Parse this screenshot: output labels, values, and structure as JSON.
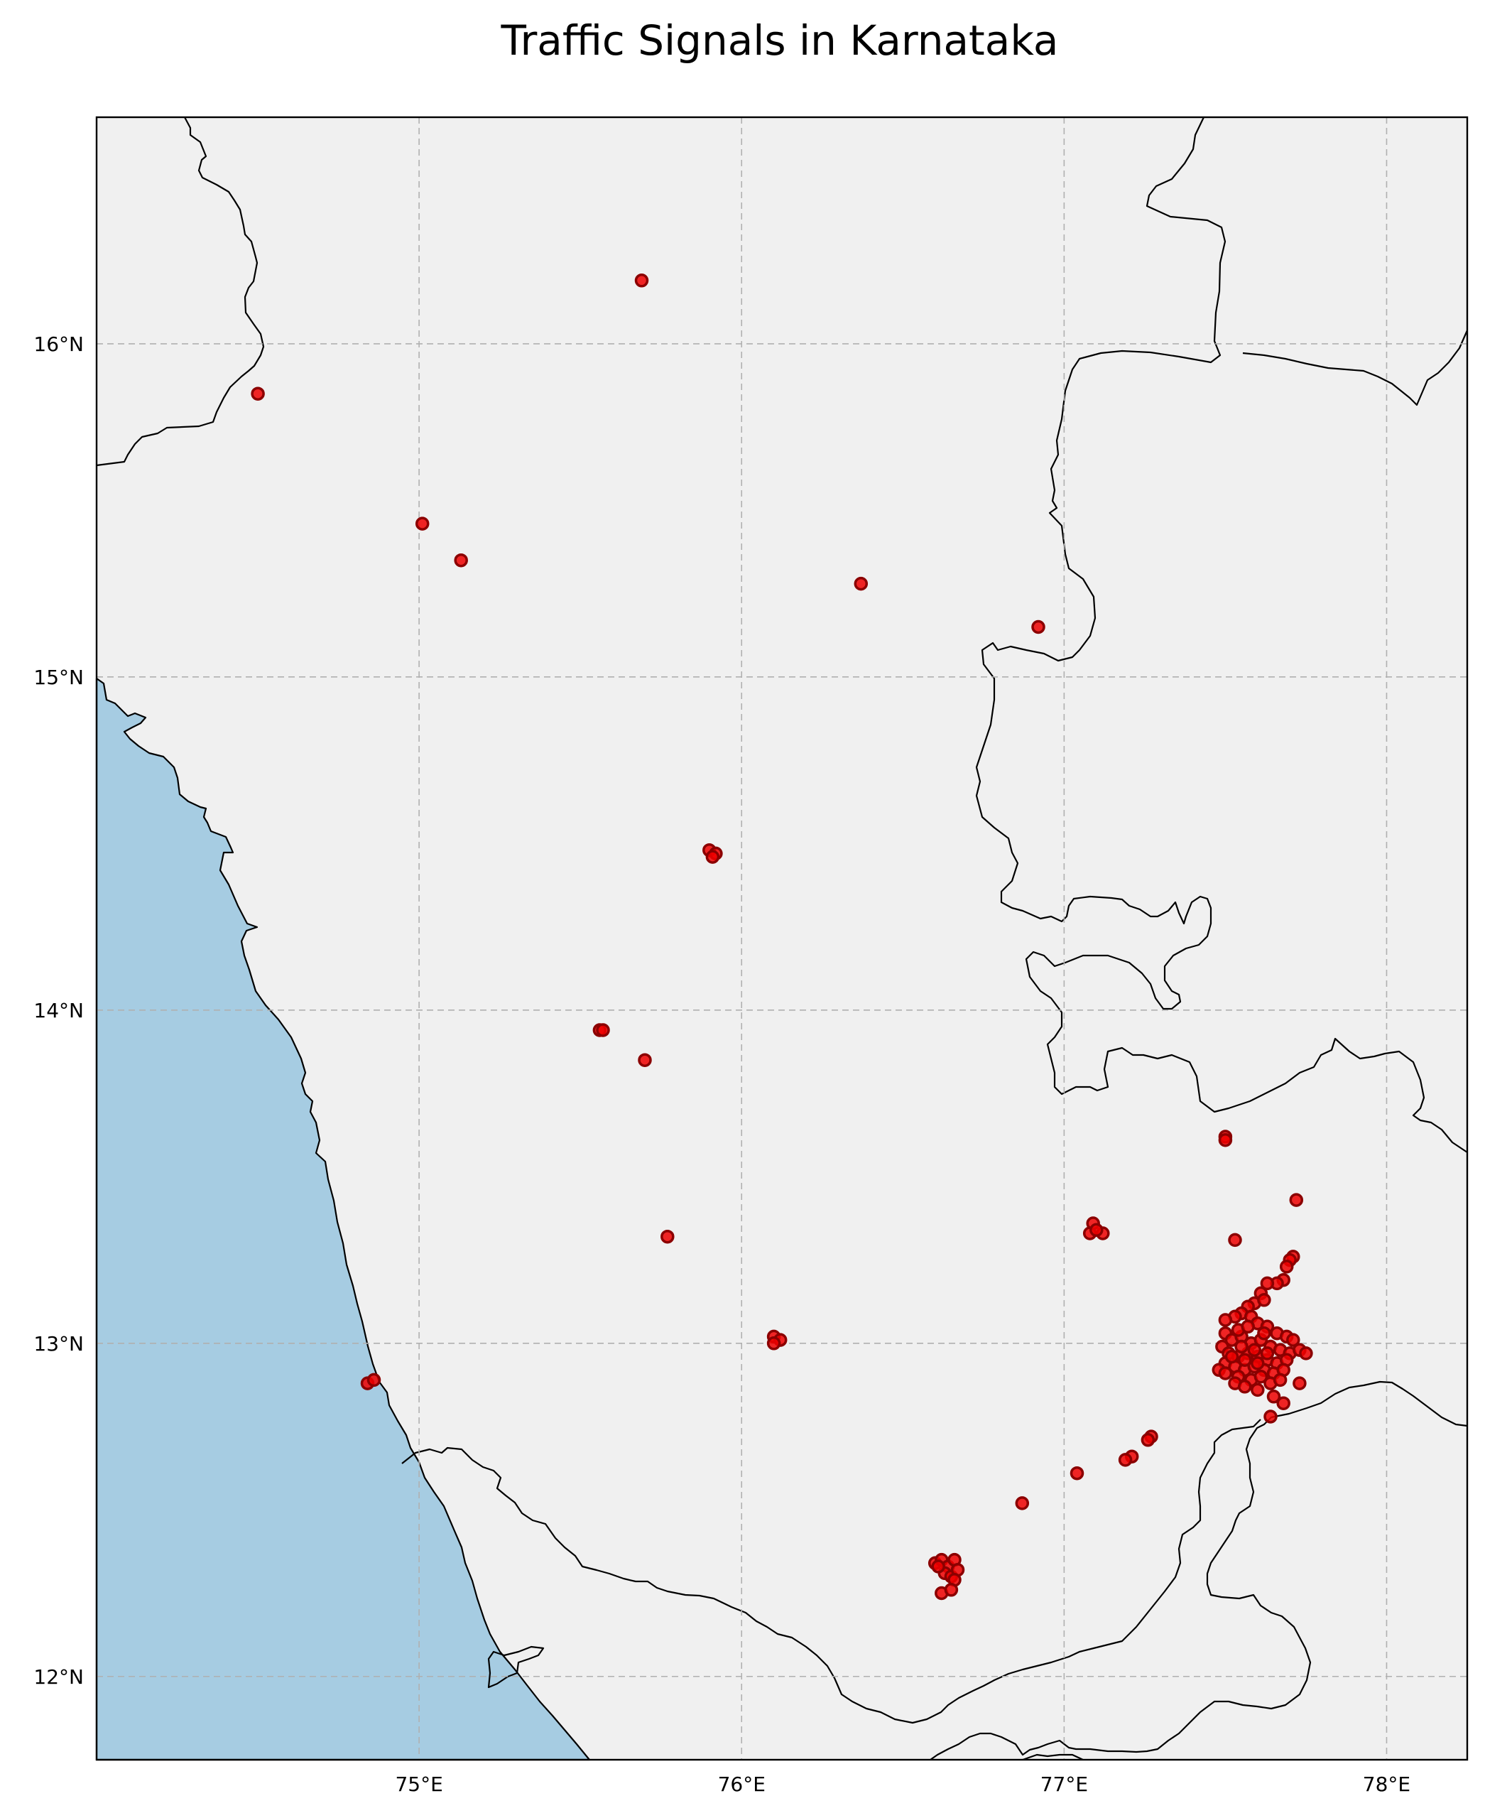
{
  "map": {
    "title": "Traffic Signals in Karnataka",
    "extent": {
      "lon_min": 74.0,
      "lon_max": 78.25,
      "lat_min": 11.75,
      "lat_max": 16.68
    },
    "x_ticks": [
      {
        "value": 75,
        "label": "75°E"
      },
      {
        "value": 76,
        "label": "76°E"
      },
      {
        "value": 77,
        "label": "77°E"
      },
      {
        "value": 78,
        "label": "78°E"
      }
    ],
    "y_ticks": [
      {
        "value": 12,
        "label": "12°N"
      },
      {
        "value": 13,
        "label": "13°N"
      },
      {
        "value": 14,
        "label": "14°N"
      },
      {
        "value": 15,
        "label": "15°N"
      },
      {
        "value": 16,
        "label": "16°N"
      }
    ],
    "grid": true,
    "colors": {
      "land": "#f0f0f0",
      "ocean": "#a6cce2",
      "marker_fill": "#ee0000",
      "marker_edge": "#8b0000",
      "grid": "#b0b0b0"
    }
  },
  "chart_data": {
    "type": "scatter",
    "title": "Traffic Signals in Karnataka",
    "xlim": [
      74.0,
      78.25
    ],
    "ylim": [
      11.75,
      16.68
    ],
    "grid": true,
    "points": [
      {
        "lon": 75.69,
        "lat": 16.19
      },
      {
        "lon": 74.5,
        "lat": 15.85
      },
      {
        "lon": 75.01,
        "lat": 15.46
      },
      {
        "lon": 75.13,
        "lat": 15.35
      },
      {
        "lon": 76.37,
        "lat": 15.28
      },
      {
        "lon": 76.92,
        "lat": 15.15
      },
      {
        "lon": 75.9,
        "lat": 14.48
      },
      {
        "lon": 75.92,
        "lat": 14.47
      },
      {
        "lon": 75.91,
        "lat": 14.46
      },
      {
        "lon": 75.56,
        "lat": 13.94
      },
      {
        "lon": 75.57,
        "lat": 13.94
      },
      {
        "lon": 75.7,
        "lat": 13.85
      },
      {
        "lon": 75.77,
        "lat": 13.32
      },
      {
        "lon": 74.84,
        "lat": 12.88
      },
      {
        "lon": 74.86,
        "lat": 12.89
      },
      {
        "lon": 76.1,
        "lat": 13.02
      },
      {
        "lon": 76.12,
        "lat": 13.01
      },
      {
        "lon": 76.1,
        "lat": 13.0
      },
      {
        "lon": 77.5,
        "lat": 13.62
      },
      {
        "lon": 77.5,
        "lat": 13.61
      },
      {
        "lon": 77.53,
        "lat": 13.31
      },
      {
        "lon": 77.72,
        "lat": 13.43
      },
      {
        "lon": 77.09,
        "lat": 13.36
      },
      {
        "lon": 77.08,
        "lat": 13.33
      },
      {
        "lon": 77.12,
        "lat": 13.33
      },
      {
        "lon": 77.1,
        "lat": 13.34
      },
      {
        "lon": 77.71,
        "lat": 13.26
      },
      {
        "lon": 77.7,
        "lat": 13.25
      },
      {
        "lon": 77.69,
        "lat": 13.23
      },
      {
        "lon": 77.68,
        "lat": 13.19
      },
      {
        "lon": 77.66,
        "lat": 13.18
      },
      {
        "lon": 77.63,
        "lat": 13.18
      },
      {
        "lon": 77.61,
        "lat": 13.15
      },
      {
        "lon": 77.59,
        "lat": 13.12
      },
      {
        "lon": 77.62,
        "lat": 13.13
      },
      {
        "lon": 77.57,
        "lat": 13.11
      },
      {
        "lon": 77.55,
        "lat": 13.09
      },
      {
        "lon": 77.53,
        "lat": 13.08
      },
      {
        "lon": 77.58,
        "lat": 13.08
      },
      {
        "lon": 77.5,
        "lat": 13.07
      },
      {
        "lon": 77.6,
        "lat": 13.06
      },
      {
        "lon": 77.63,
        "lat": 13.05
      },
      {
        "lon": 77.66,
        "lat": 13.03
      },
      {
        "lon": 77.69,
        "lat": 13.02
      },
      {
        "lon": 77.71,
        "lat": 13.01
      },
      {
        "lon": 77.5,
        "lat": 13.03
      },
      {
        "lon": 77.52,
        "lat": 13.01
      },
      {
        "lon": 77.55,
        "lat": 13.02
      },
      {
        "lon": 77.58,
        "lat": 13.0
      },
      {
        "lon": 77.61,
        "lat": 13.01
      },
      {
        "lon": 77.64,
        "lat": 12.99
      },
      {
        "lon": 77.67,
        "lat": 12.98
      },
      {
        "lon": 77.7,
        "lat": 12.97
      },
      {
        "lon": 77.73,
        "lat": 12.98
      },
      {
        "lon": 77.75,
        "lat": 12.97
      },
      {
        "lon": 77.49,
        "lat": 12.99
      },
      {
        "lon": 77.51,
        "lat": 12.97
      },
      {
        "lon": 77.54,
        "lat": 12.96
      },
      {
        "lon": 77.57,
        "lat": 12.97
      },
      {
        "lon": 77.6,
        "lat": 12.96
      },
      {
        "lon": 77.63,
        "lat": 12.95
      },
      {
        "lon": 77.66,
        "lat": 12.94
      },
      {
        "lon": 77.69,
        "lat": 12.95
      },
      {
        "lon": 77.5,
        "lat": 12.94
      },
      {
        "lon": 77.53,
        "lat": 12.93
      },
      {
        "lon": 77.56,
        "lat": 12.92
      },
      {
        "lon": 77.59,
        "lat": 12.93
      },
      {
        "lon": 77.62,
        "lat": 12.92
      },
      {
        "lon": 77.65,
        "lat": 12.91
      },
      {
        "lon": 77.68,
        "lat": 12.92
      },
      {
        "lon": 77.48,
        "lat": 12.92
      },
      {
        "lon": 77.5,
        "lat": 12.91
      },
      {
        "lon": 77.54,
        "lat": 12.9
      },
      {
        "lon": 77.58,
        "lat": 12.89
      },
      {
        "lon": 77.61,
        "lat": 12.9
      },
      {
        "lon": 77.64,
        "lat": 12.88
      },
      {
        "lon": 77.67,
        "lat": 12.89
      },
      {
        "lon": 77.53,
        "lat": 12.88
      },
      {
        "lon": 77.56,
        "lat": 12.87
      },
      {
        "lon": 77.6,
        "lat": 12.86
      },
      {
        "lon": 77.73,
        "lat": 12.88
      },
      {
        "lon": 77.65,
        "lat": 12.84
      },
      {
        "lon": 77.68,
        "lat": 12.82
      },
      {
        "lon": 77.64,
        "lat": 12.78
      },
      {
        "lon": 77.54,
        "lat": 13.04
      },
      {
        "lon": 77.57,
        "lat": 13.05
      },
      {
        "lon": 77.62,
        "lat": 13.03
      },
      {
        "lon": 77.55,
        "lat": 12.99
      },
      {
        "lon": 77.59,
        "lat": 12.98
      },
      {
        "lon": 77.63,
        "lat": 12.97
      },
      {
        "lon": 77.56,
        "lat": 12.95
      },
      {
        "lon": 77.6,
        "lat": 12.94
      },
      {
        "lon": 77.52,
        "lat": 12.96
      },
      {
        "lon": 77.27,
        "lat": 12.72
      },
      {
        "lon": 77.26,
        "lat": 12.71
      },
      {
        "lon": 77.21,
        "lat": 12.66
      },
      {
        "lon": 77.19,
        "lat": 12.65
      },
      {
        "lon": 77.04,
        "lat": 12.61
      },
      {
        "lon": 76.87,
        "lat": 12.52
      },
      {
        "lon": 76.6,
        "lat": 12.34
      },
      {
        "lon": 76.62,
        "lat": 12.35
      },
      {
        "lon": 76.64,
        "lat": 12.33
      },
      {
        "lon": 76.66,
        "lat": 12.35
      },
      {
        "lon": 76.63,
        "lat": 12.31
      },
      {
        "lon": 76.65,
        "lat": 12.3
      },
      {
        "lon": 76.67,
        "lat": 12.32
      },
      {
        "lon": 76.66,
        "lat": 12.29
      },
      {
        "lon": 76.61,
        "lat": 12.33
      },
      {
        "lon": 76.62,
        "lat": 12.25
      },
      {
        "lon": 76.65,
        "lat": 12.26
      }
    ]
  }
}
